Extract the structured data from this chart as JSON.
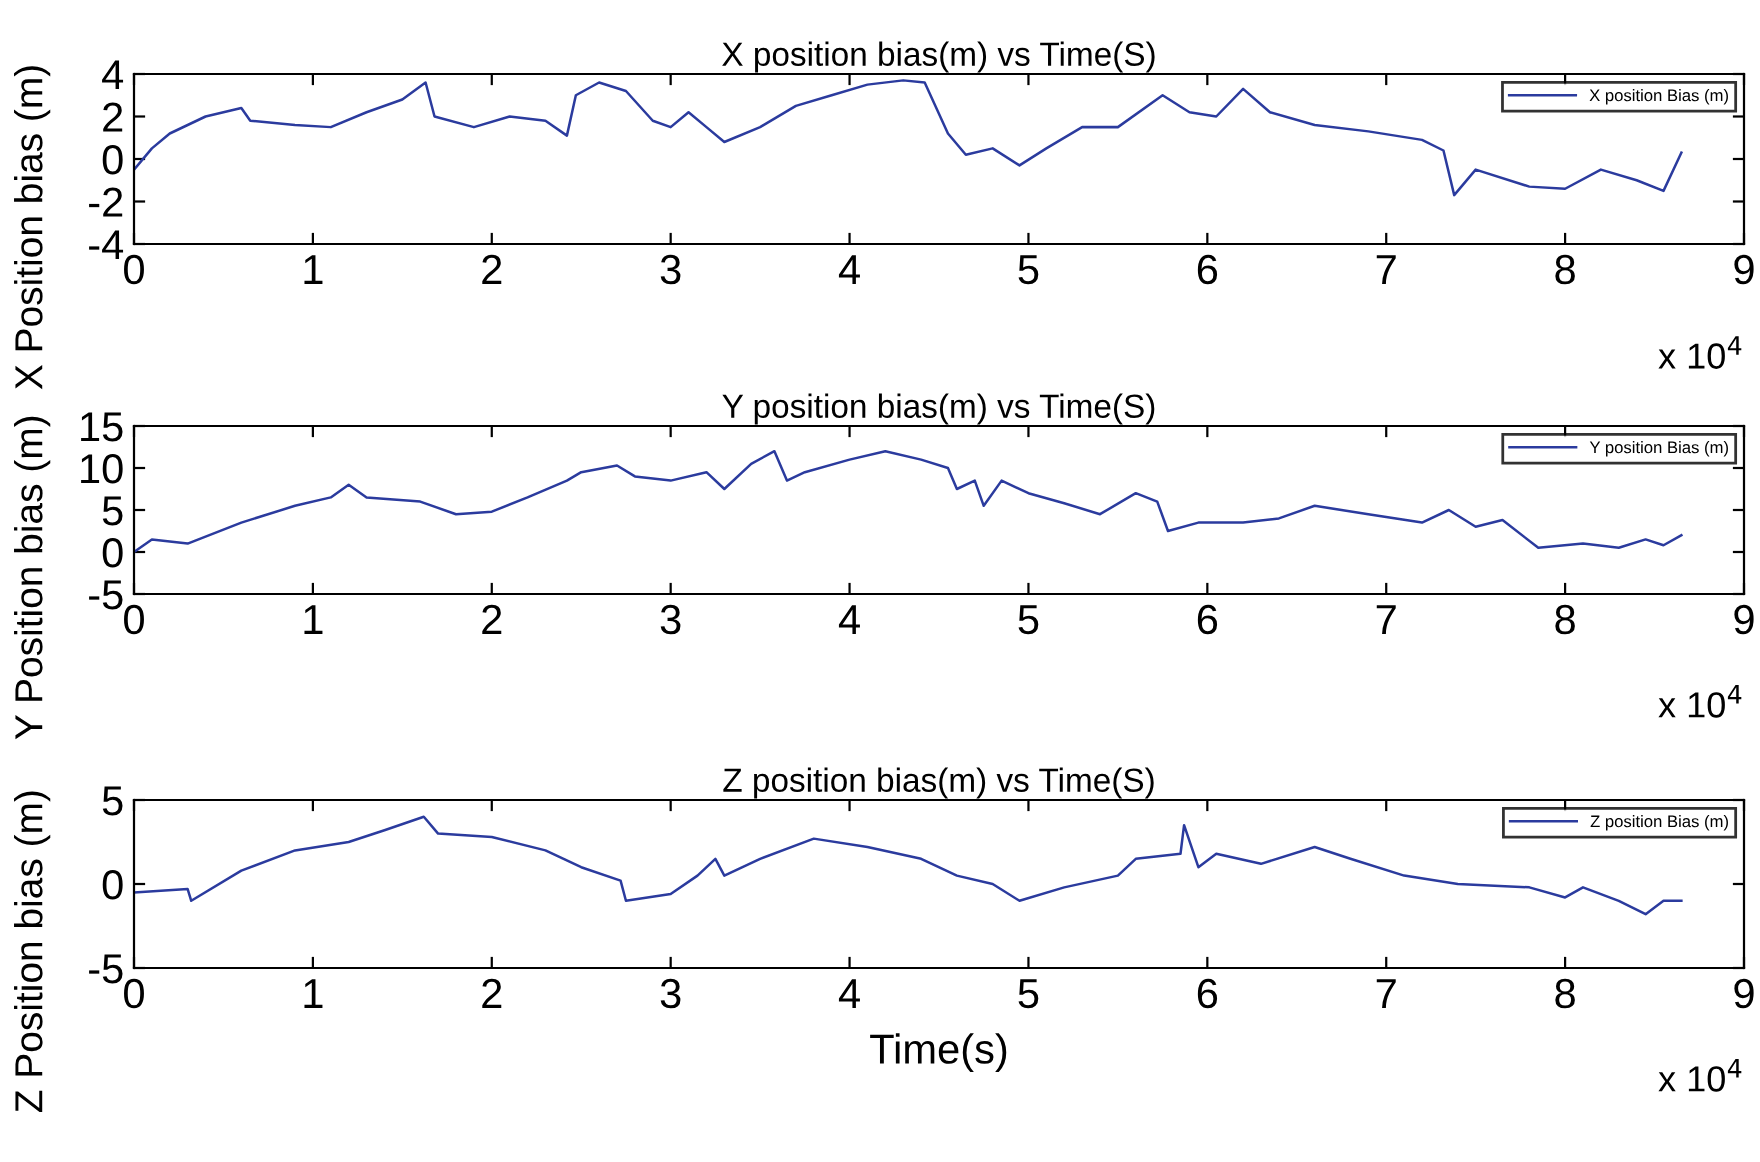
{
  "chart_data": [
    {
      "type": "line",
      "title": "X position bias(m) vs Time(S)",
      "ylabel": "X Position bias (m)",
      "annotations": [
        "x 10$^{4}$"
      ],
      "legend": "top right",
      "grid": false,
      "xlim": [
        0,
        9
      ],
      "xticks": [
        0,
        1,
        2,
        3,
        4,
        5,
        6,
        7,
        8,
        9
      ],
      "ylim": [
        -4,
        4
      ],
      "yticks": [
        -4,
        -2,
        0,
        2,
        4
      ],
      "series": [
        {
          "name": "X position Bias (m)",
          "color": "#2b3b9e",
          "x": [
            0,
            0.1,
            0.2,
            0.4,
            0.6,
            0.65,
            0.9,
            1.1,
            1.3,
            1.5,
            1.63,
            1.68,
            1.9,
            2.1,
            2.3,
            2.42,
            2.47,
            2.6,
            2.75,
            2.9,
            3.0,
            3.1,
            3.2,
            3.3,
            3.5,
            3.7,
            3.9,
            4.1,
            4.3,
            4.42,
            4.55,
            4.65,
            4.8,
            4.95,
            5.1,
            5.3,
            5.5,
            5.75,
            5.9,
            6.05,
            6.2,
            6.35,
            6.6,
            6.9,
            7.2,
            7.32,
            7.38,
            7.5,
            7.8,
            8.0,
            8.2,
            8.4,
            8.55,
            8.65
          ],
          "values": [
            -0.5,
            0.5,
            1.2,
            2.0,
            2.4,
            1.8,
            1.6,
            1.5,
            2.2,
            2.8,
            3.6,
            2.0,
            1.5,
            2.0,
            1.8,
            1.1,
            3.0,
            3.6,
            3.2,
            1.8,
            1.5,
            2.2,
            1.5,
            0.8,
            1.5,
            2.5,
            3.0,
            3.5,
            3.7,
            3.6,
            1.2,
            0.2,
            0.5,
            -0.3,
            0.5,
            1.5,
            1.5,
            3.0,
            2.2,
            2.0,
            3.3,
            2.2,
            1.6,
            1.3,
            0.9,
            0.4,
            -1.7,
            -0.5,
            -1.3,
            -1.4,
            -0.5,
            -1.0,
            -1.5,
            0.3
          ]
        }
      ]
    },
    {
      "type": "line",
      "title": "Y position bias(m) vs Time(S)",
      "ylabel": "Y Position bias (m)",
      "annotations": [
        "x 10$^{4}$"
      ],
      "legend": "top right",
      "grid": false,
      "xlim": [
        0,
        9
      ],
      "xticks": [
        0,
        1,
        2,
        3,
        4,
        5,
        6,
        7,
        8,
        9
      ],
      "ylim": [
        -5,
        15
      ],
      "yticks": [
        -5,
        0,
        5,
        10,
        15
      ],
      "series": [
        {
          "name": "Y position Bias (m)",
          "color": "#2b3b9e",
          "x": [
            0,
            0.1,
            0.3,
            0.6,
            0.9,
            1.1,
            1.2,
            1.3,
            1.6,
            1.8,
            2.0,
            2.2,
            2.42,
            2.5,
            2.7,
            2.8,
            3.0,
            3.2,
            3.3,
            3.45,
            3.58,
            3.65,
            3.75,
            4.0,
            4.2,
            4.4,
            4.55,
            4.6,
            4.7,
            4.75,
            4.85,
            5.0,
            5.2,
            5.4,
            5.6,
            5.72,
            5.78,
            5.95,
            6.2,
            6.4,
            6.6,
            6.9,
            7.2,
            7.35,
            7.5,
            7.65,
            7.85,
            8.1,
            8.3,
            8.45,
            8.55,
            8.65
          ],
          "values": [
            0,
            1.5,
            1.0,
            3.5,
            5.5,
            6.5,
            8.0,
            6.5,
            6.0,
            4.5,
            4.8,
            6.5,
            8.5,
            9.5,
            10.3,
            9.0,
            8.5,
            9.5,
            7.5,
            10.5,
            12.0,
            8.5,
            9.5,
            11.0,
            12.0,
            11.0,
            10.0,
            7.5,
            8.5,
            5.5,
            8.5,
            7.0,
            5.8,
            4.5,
            7.0,
            6.0,
            2.5,
            3.5,
            3.5,
            4.0,
            5.5,
            4.5,
            3.5,
            5.0,
            3.0,
            3.8,
            0.5,
            1.0,
            0.5,
            1.5,
            0.8,
            2.0
          ]
        }
      ]
    },
    {
      "type": "line",
      "title": "Z position bias(m) vs Time(S)",
      "ylabel": "Z Position bias (m)",
      "xlabel": "Time(s)",
      "annotations": [
        "x 10$^{4}$"
      ],
      "legend": "top right",
      "grid": false,
      "xlim": [
        0,
        9
      ],
      "xticks": [
        0,
        1,
        2,
        3,
        4,
        5,
        6,
        7,
        8,
        9
      ],
      "ylim": [
        -5,
        5
      ],
      "yticks": [
        -5,
        0,
        5
      ],
      "series": [
        {
          "name": "Z position Bias (m)",
          "color": "#2b3b9e",
          "x": [
            0,
            0.3,
            0.32,
            0.6,
            0.9,
            1.2,
            1.4,
            1.62,
            1.7,
            2.0,
            2.3,
            2.5,
            2.72,
            2.75,
            3.0,
            3.15,
            3.25,
            3.3,
            3.5,
            3.8,
            4.1,
            4.4,
            4.6,
            4.8,
            4.95,
            5.2,
            5.5,
            5.6,
            5.85,
            5.87,
            5.95,
            6.05,
            6.3,
            6.6,
            6.8,
            7.1,
            7.4,
            7.8,
            8.0,
            8.1,
            8.3,
            8.45,
            8.55,
            8.65
          ],
          "values": [
            -0.5,
            -0.3,
            -1.0,
            0.8,
            2.0,
            2.5,
            3.2,
            4.0,
            3.0,
            2.8,
            2.0,
            1.0,
            0.2,
            -1.0,
            -0.6,
            0.5,
            1.5,
            0.5,
            1.5,
            2.7,
            2.2,
            1.5,
            0.5,
            0.0,
            -1.0,
            -0.2,
            0.5,
            1.5,
            1.8,
            3.5,
            1.0,
            1.8,
            1.2,
            2.2,
            1.5,
            0.5,
            0.0,
            -0.2,
            -0.8,
            -0.2,
            -1.0,
            -1.8,
            -1.0,
            -1.0
          ]
        }
      ]
    }
  ]
}
